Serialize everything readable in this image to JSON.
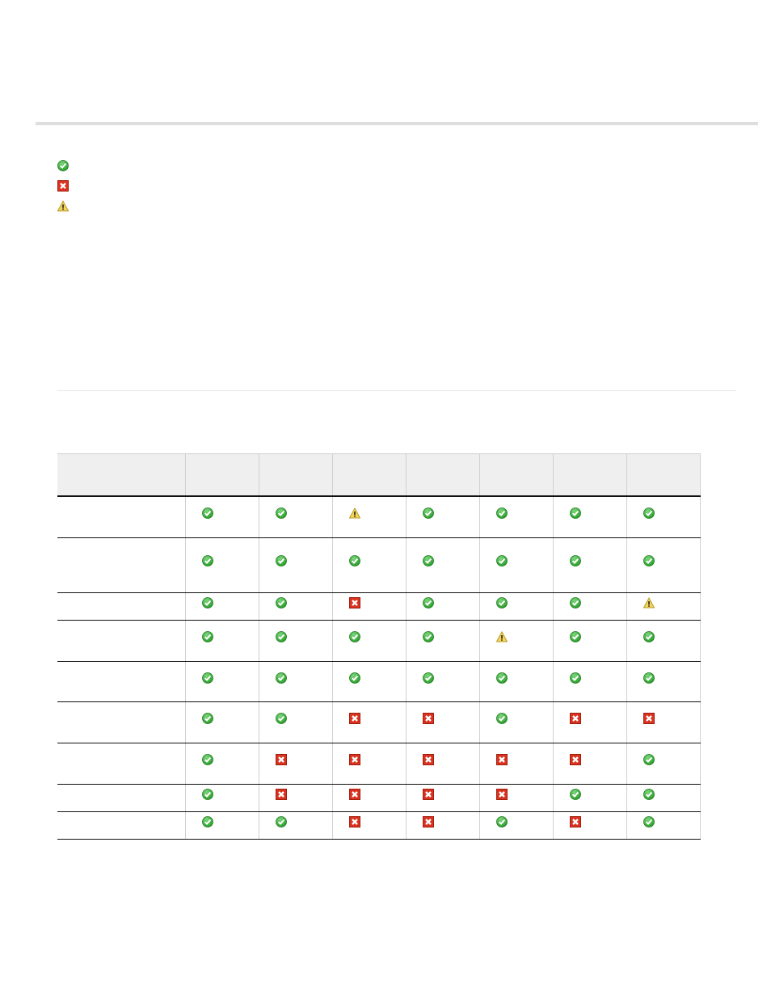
{
  "legend": [
    {
      "icon": "check-icon"
    },
    {
      "icon": "cross-icon"
    },
    {
      "icon": "warning-icon"
    }
  ],
  "colors": {
    "check": "#2a9d2a",
    "cross": "#d9331f",
    "warning": "#f3d55a"
  },
  "table": {
    "columns": 7,
    "rows": [
      [
        "check",
        "check",
        "warning",
        "check",
        "check",
        "check",
        "check"
      ],
      [
        "check",
        "check",
        "check",
        "check",
        "check",
        "check",
        "check"
      ],
      [
        "check",
        "check",
        "cross",
        "check",
        "check",
        "check",
        "warning"
      ],
      [
        "check",
        "check",
        "check",
        "check",
        "warning",
        "check",
        "check"
      ],
      [
        "check",
        "check",
        "check",
        "check",
        "check",
        "check",
        "check"
      ],
      [
        "check",
        "check",
        "cross",
        "cross",
        "check",
        "cross",
        "cross"
      ],
      [
        "check",
        "cross",
        "cross",
        "cross",
        "cross",
        "cross",
        "check"
      ],
      [
        "check",
        "cross",
        "cross",
        "cross",
        "cross",
        "check",
        "check"
      ],
      [
        "check",
        "check",
        "cross",
        "cross",
        "check",
        "cross",
        "check"
      ]
    ]
  }
}
